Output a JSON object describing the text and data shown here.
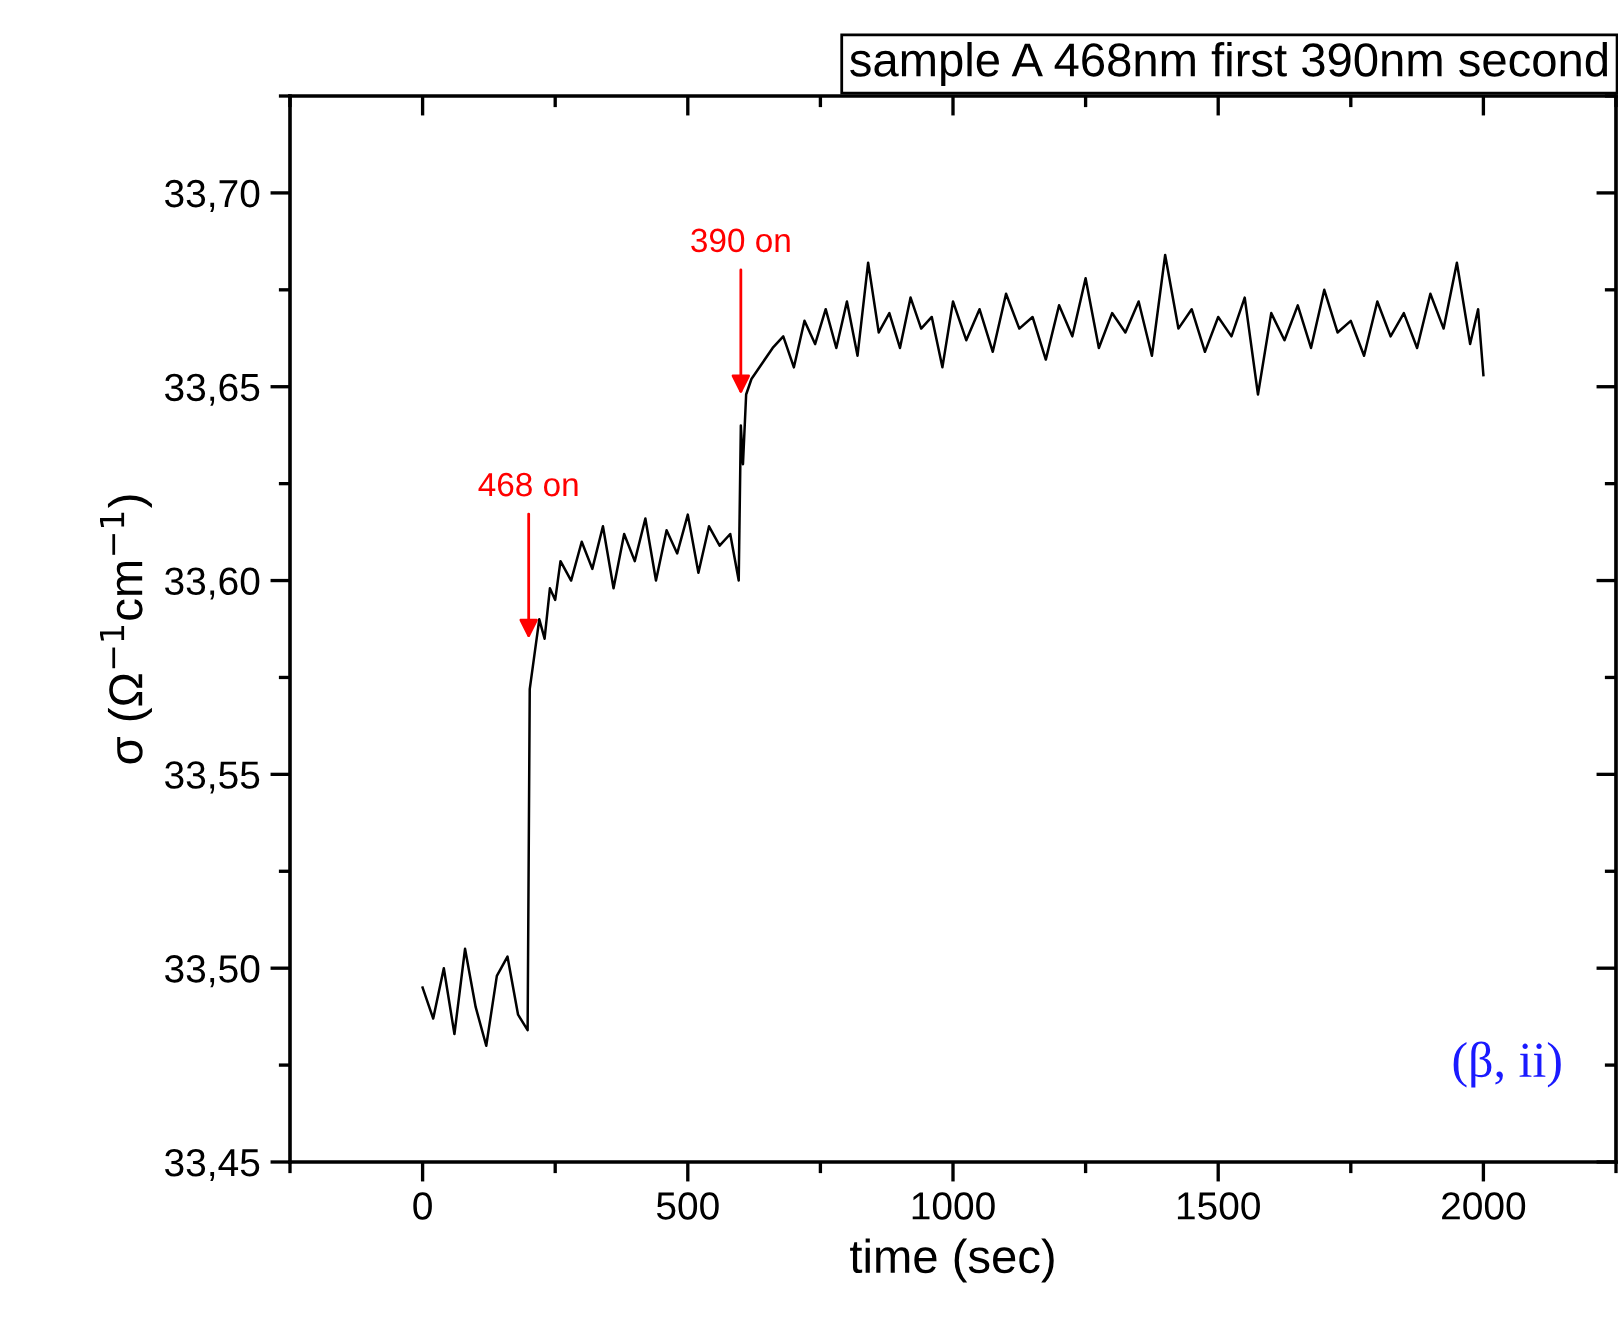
{
  "chart_data": {
    "type": "line",
    "title": "sample A 468nm first 390nm second",
    "xlabel": "time (sec)",
    "ylabel": "σ (Ω$^{−1}$cm$^{−1}$)",
    "xlim": [
      -250,
      2250
    ],
    "xticks": [
      {
        "value": -250,
        "label": null
      },
      0,
      {
        "value": 250,
        "label": null
      },
      500,
      {
        "value": 750,
        "label": null
      },
      1000,
      {
        "value": 1250,
        "label": null
      },
      1500,
      {
        "value": 1750,
        "label": null
      },
      2000,
      {
        "value": 2250,
        "label": null
      }
    ],
    "ylim": [
      33.45,
      33.725
    ],
    "yticks": [
      {
        "value": 33.45,
        "label": "33,45"
      },
      {
        "value": 33.475,
        "label": null
      },
      {
        "value": 33.5,
        "label": "33,50"
      },
      {
        "value": 33.525,
        "label": null
      },
      {
        "value": 33.55,
        "label": "33,55"
      },
      {
        "value": 33.575,
        "label": null
      },
      {
        "value": 33.6,
        "label": "33,60"
      },
      {
        "value": 33.625,
        "label": null
      },
      {
        "value": 33.65,
        "label": "33,65"
      },
      {
        "value": 33.675,
        "label": null
      },
      {
        "value": 33.7,
        "label": "33,70"
      },
      {
        "value": 33.725,
        "label": null
      }
    ],
    "grid": false,
    "marker": "none",
    "line_style": "solid",
    "x": [
      0,
      20,
      40,
      60,
      80,
      100,
      120,
      140,
      160,
      180,
      198,
      202,
      210,
      220,
      230,
      240,
      250,
      260,
      280,
      300,
      320,
      340,
      360,
      380,
      400,
      420,
      440,
      460,
      480,
      500,
      520,
      540,
      560,
      580,
      596,
      600,
      604,
      610,
      620,
      640,
      660,
      680,
      700,
      720,
      740,
      760,
      780,
      800,
      820,
      840,
      860,
      880,
      900,
      920,
      940,
      960,
      980,
      1000,
      1025,
      1050,
      1075,
      1100,
      1125,
      1150,
      1175,
      1200,
      1225,
      1250,
      1275,
      1300,
      1325,
      1350,
      1375,
      1400,
      1425,
      1450,
      1475,
      1500,
      1525,
      1550,
      1575,
      1600,
      1625,
      1650,
      1675,
      1700,
      1725,
      1750,
      1775,
      1800,
      1825,
      1850,
      1875,
      1900,
      1925,
      1950,
      1975,
      1990,
      2000
    ],
    "series": [
      {
        "color": "#000000",
        "values": [
          33.495,
          33.487,
          33.5,
          33.483,
          33.505,
          33.49,
          33.48,
          33.498,
          33.503,
          33.488,
          33.484,
          33.572,
          33.58,
          33.59,
          33.585,
          33.598,
          33.595,
          33.605,
          33.6,
          33.61,
          33.603,
          33.614,
          33.598,
          33.612,
          33.605,
          33.616,
          33.6,
          33.613,
          33.607,
          33.617,
          33.602,
          33.614,
          33.609,
          33.612,
          33.6,
          33.64,
          33.63,
          33.648,
          33.652,
          33.656,
          33.66,
          33.663,
          33.655,
          33.667,
          33.661,
          33.67,
          33.66,
          33.672,
          33.658,
          33.682,
          33.664,
          33.669,
          33.66,
          33.673,
          33.665,
          33.668,
          33.655,
          33.672,
          33.662,
          33.67,
          33.659,
          33.674,
          33.665,
          33.668,
          33.657,
          33.671,
          33.663,
          33.678,
          33.66,
          33.669,
          33.664,
          33.672,
          33.658,
          33.684,
          33.665,
          33.67,
          33.659,
          33.668,
          33.663,
          33.673,
          33.648,
          33.669,
          33.662,
          33.671,
          33.66,
          33.675,
          33.664,
          33.667,
          33.658,
          33.672,
          33.663,
          33.669,
          33.66,
          33.674,
          33.665,
          33.682,
          33.661,
          33.67,
          33.653
        ]
      }
    ],
    "annotations": [
      {
        "text": "468 on",
        "x": 200,
        "y": 33.585
      },
      {
        "text": "390 on",
        "x": 600,
        "y": 33.648
      },
      "(β, ii)"
    ]
  }
}
